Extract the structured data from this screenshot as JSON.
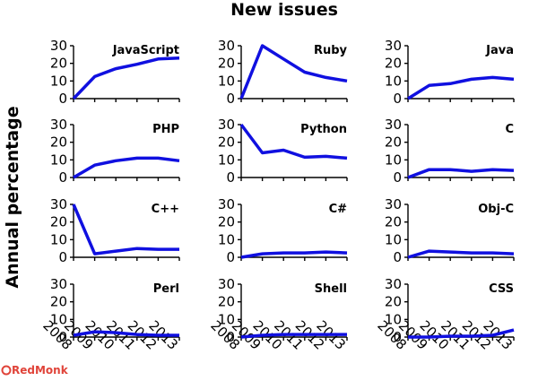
{
  "chart_data": {
    "type": "line",
    "title": "New issues",
    "ylabel": "Annual percentage",
    "x": [
      "2008",
      "2009",
      "2010",
      "2011",
      "2012",
      "2013"
    ],
    "ylim": [
      0,
      30
    ],
    "yticks": [
      "0",
      "10",
      "20",
      "30"
    ],
    "panels": [
      {
        "name": "JavaScript",
        "values": [
          0,
          12.5,
          17,
          19.5,
          22.5,
          23
        ]
      },
      {
        "name": "Ruby",
        "values": [
          0,
          30,
          22.5,
          15,
          12,
          10
        ]
      },
      {
        "name": "Java",
        "values": [
          0,
          7.5,
          8.5,
          11,
          12,
          11
        ]
      },
      {
        "name": "PHP",
        "values": [
          0,
          7,
          9.5,
          11,
          11,
          9.5
        ]
      },
      {
        "name": "Python",
        "values": [
          30,
          14,
          15.5,
          11.5,
          12,
          11
        ]
      },
      {
        "name": "C",
        "values": [
          0,
          4.5,
          4.5,
          3.5,
          4.5,
          4
        ]
      },
      {
        "name": "C++",
        "values": [
          30,
          2,
          3.5,
          5,
          4.5,
          4.5
        ]
      },
      {
        "name": "C#",
        "values": [
          0,
          2,
          2.5,
          2.5,
          3,
          2.5
        ]
      },
      {
        "name": "Obj-C",
        "values": [
          0,
          3.5,
          3,
          2.5,
          2.5,
          2
        ]
      },
      {
        "name": "Perl",
        "values": [
          1,
          3,
          2.5,
          1.5,
          1,
          1
        ]
      },
      {
        "name": "Shell",
        "values": [
          0,
          1,
          1.5,
          1.5,
          1.5,
          1.5
        ]
      },
      {
        "name": "CSS",
        "values": [
          0,
          0,
          0.5,
          0.5,
          1,
          4
        ]
      }
    ],
    "series_color": "#1010e0"
  },
  "brand": {
    "name": "RedMonk",
    "color": "#e0443a"
  }
}
